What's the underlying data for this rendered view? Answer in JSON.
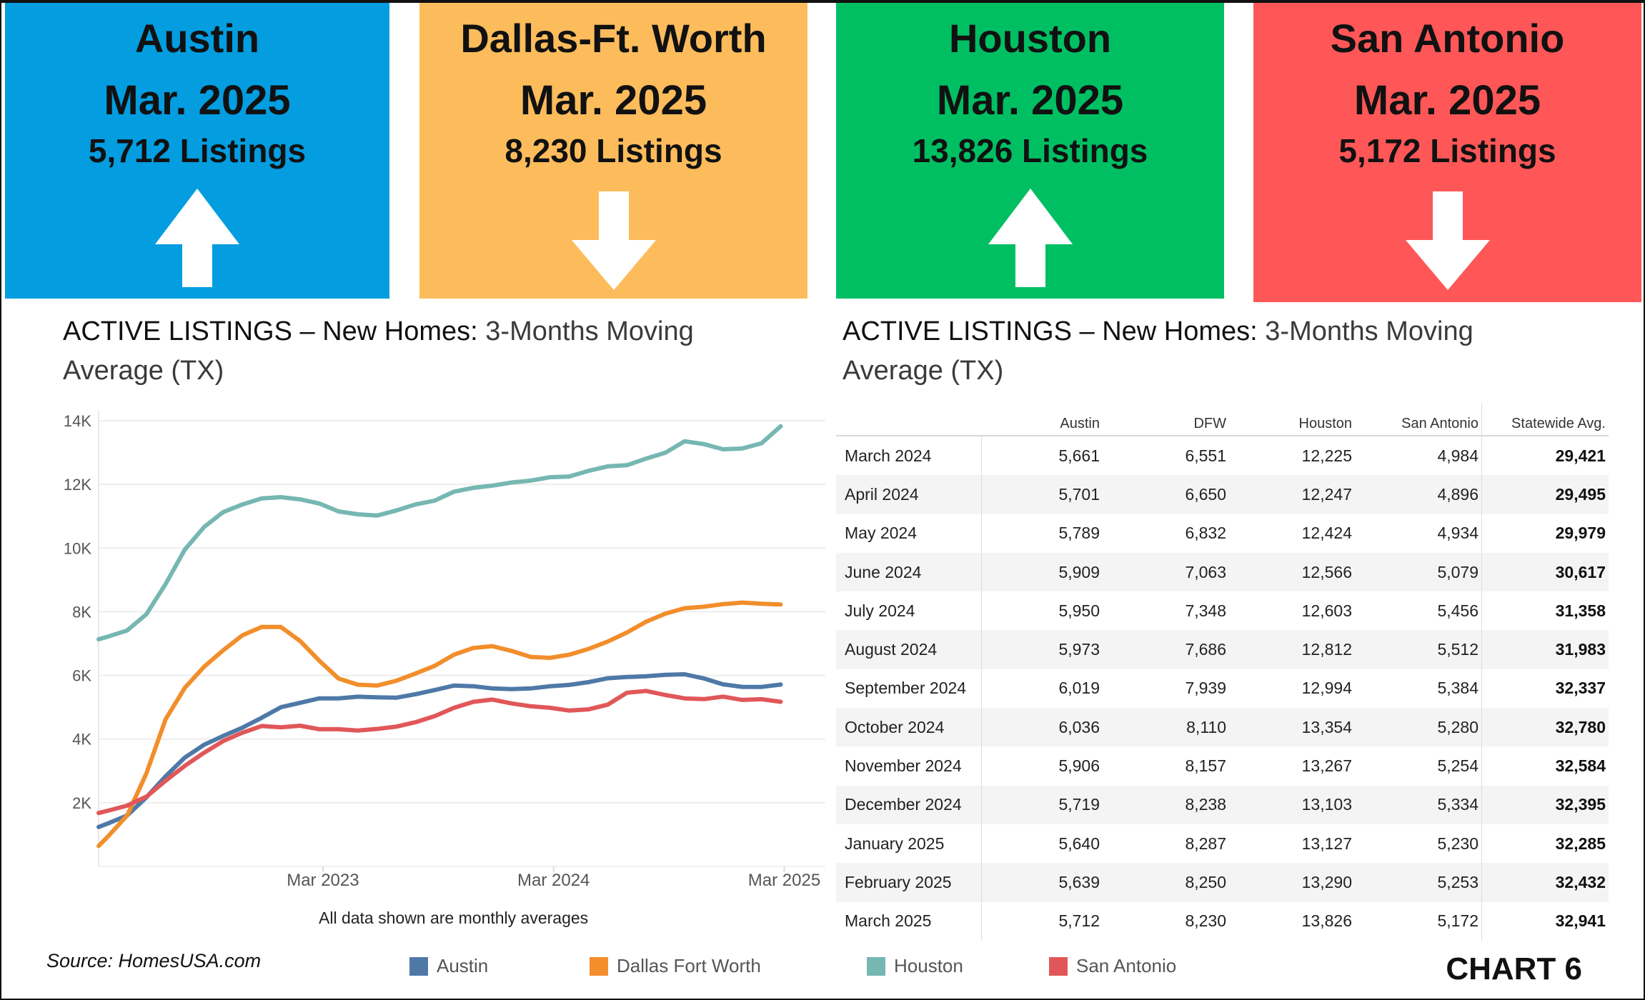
{
  "boxes": [
    {
      "name": "Austin",
      "period": "Mar. 2025",
      "listings": "5,712 Listings",
      "trend": "arrow-up-icon",
      "color": "#039de0"
    },
    {
      "name": "Dallas-Ft. Worth",
      "period": "Mar. 2025",
      "listings": "8,230 Listings",
      "trend": "arrow-down-icon",
      "color": "#fdbc5c"
    },
    {
      "name": "Houston",
      "period": "Mar. 2025",
      "listings": "13,826 Listings",
      "trend": "arrow-up-icon",
      "color": "#00bf63"
    },
    {
      "name": "San Antonio",
      "period": "Mar. 2025",
      "listings": "5,172 Listings",
      "trend": "arrow-down-icon",
      "color": "#ff5757"
    }
  ],
  "left_title": {
    "bold_part": "ACTIVE LISTINGS – New Homes:",
    "rest": " 3-Months  Moving Average (TX)"
  },
  "right_title": {
    "bold_part": "ACTIVE LISTINGS – New Homes:",
    "rest": " 3-Months  Moving Average (TX)"
  },
  "chart_data": {
    "type": "line",
    "title": "ACTIVE LISTINGS – New Homes: 3-Months  Moving Average (TX)",
    "note": "All data shown are monthly averages",
    "xlabel": "",
    "ylabel": "",
    "ylim": [
      0,
      14000
    ],
    "y_ticks": [
      {
        "v": 2000,
        "label": "2K"
      },
      {
        "v": 4000,
        "label": "4K"
      },
      {
        "v": 6000,
        "label": "6K"
      },
      {
        "v": 8000,
        "label": "8K"
      },
      {
        "v": 10000,
        "label": "10K"
      },
      {
        "v": 12000,
        "label": "12K"
      },
      {
        "v": 14000,
        "label": "14K"
      }
    ],
    "x_ticks": [
      {
        "v": "2023-03",
        "label": "Mar 2023"
      },
      {
        "v": "2024-03",
        "label": "Mar 2024"
      },
      {
        "v": "2025-03",
        "label": "Mar 2025"
      }
    ],
    "grid": true,
    "legend_position": "bottom",
    "x": [
      "2022-04",
      "2022-05",
      "2022-06",
      "2022-07",
      "2022-08",
      "2022-09",
      "2022-10",
      "2022-11",
      "2022-12",
      "2023-01",
      "2023-02",
      "2023-03",
      "2023-04",
      "2023-05",
      "2023-06",
      "2023-07",
      "2023-08",
      "2023-09",
      "2023-10",
      "2023-11",
      "2023-12",
      "2024-01",
      "2024-02",
      "2024-03",
      "2024-04",
      "2024-05",
      "2024-06",
      "2024-07",
      "2024-08",
      "2024-09",
      "2024-10",
      "2024-11",
      "2024-12",
      "2025-01",
      "2025-02",
      "2025-03"
    ],
    "series": [
      {
        "name": "Austin",
        "color": "#4e79a7",
        "values": [
          1350,
          1600,
          2170,
          2830,
          3420,
          3820,
          4100,
          4360,
          4670,
          5000,
          5140,
          5280,
          5280,
          5330,
          5310,
          5300,
          5410,
          5540,
          5680,
          5660,
          5590,
          5570,
          5590,
          5661,
          5701,
          5789,
          5909,
          5950,
          5973,
          6019,
          6036,
          5906,
          5719,
          5640,
          5639,
          5712
        ]
      },
      {
        "name": "Dallas Fort Worth",
        "color": "#f28e2b",
        "values": [
          940,
          1600,
          2920,
          4620,
          5610,
          6270,
          6790,
          7260,
          7520,
          7520,
          7080,
          6460,
          5900,
          5710,
          5680,
          5830,
          6060,
          6300,
          6650,
          6860,
          6920,
          6770,
          6580,
          6551,
          6650,
          6832,
          7063,
          7348,
          7686,
          7939,
          8110,
          8157,
          8238,
          8287,
          8250,
          8230
        ]
      },
      {
        "name": "Houston",
        "color": "#76b7b2",
        "values": [
          7220,
          7410,
          7920,
          8870,
          9950,
          10660,
          11130,
          11370,
          11560,
          11600,
          11530,
          11400,
          11150,
          11060,
          11020,
          11180,
          11370,
          11490,
          11770,
          11890,
          11960,
          12060,
          12120,
          12225,
          12247,
          12424,
          12566,
          12603,
          12812,
          12994,
          13354,
          13267,
          13103,
          13127,
          13290,
          13826
        ]
      },
      {
        "name": "San Antonio",
        "color": "#e15759",
        "values": [
          1750,
          1910,
          2190,
          2690,
          3160,
          3570,
          3940,
          4200,
          4410,
          4370,
          4420,
          4310,
          4310,
          4270,
          4320,
          4390,
          4530,
          4720,
          4980,
          5170,
          5240,
          5120,
          5030,
          4984,
          4896,
          4934,
          5079,
          5456,
          5512,
          5384,
          5280,
          5254,
          5334,
          5230,
          5253,
          5172
        ]
      }
    ]
  },
  "table": {
    "headers": [
      "",
      "Austin",
      "DFW",
      "Houston",
      "San Antonio",
      "Statewide Avg."
    ],
    "rows": [
      [
        "March 2024",
        "5,661",
        "6,551",
        "12,225",
        "4,984",
        "29,421"
      ],
      [
        "April 2024",
        "5,701",
        "6,650",
        "12,247",
        "4,896",
        "29,495"
      ],
      [
        "May 2024",
        "5,789",
        "6,832",
        "12,424",
        "4,934",
        "29,979"
      ],
      [
        "June 2024",
        "5,909",
        "7,063",
        "12,566",
        "5,079",
        "30,617"
      ],
      [
        "July 2024",
        "5,950",
        "7,348",
        "12,603",
        "5,456",
        "31,358"
      ],
      [
        "August 2024",
        "5,973",
        "7,686",
        "12,812",
        "5,512",
        "31,983"
      ],
      [
        "September 2024",
        "6,019",
        "7,939",
        "12,994",
        "5,384",
        "32,337"
      ],
      [
        "October 2024",
        "6,036",
        "8,110",
        "13,354",
        "5,280",
        "32,780"
      ],
      [
        "November 2024",
        "5,906",
        "8,157",
        "13,267",
        "5,254",
        "32,584"
      ],
      [
        "December 2024",
        "5,719",
        "8,238",
        "13,103",
        "5,334",
        "32,395"
      ],
      [
        "January 2025",
        "5,640",
        "8,287",
        "13,127",
        "5,230",
        "32,285"
      ],
      [
        "February 2025",
        "5,639",
        "8,250",
        "13,290",
        "5,253",
        "32,432"
      ],
      [
        "March 2025",
        "5,712",
        "8,230",
        "13,826",
        "5,172",
        "32,941"
      ]
    ]
  },
  "source": "Source: HomesUSA.com",
  "chart_label": "CHART 6"
}
